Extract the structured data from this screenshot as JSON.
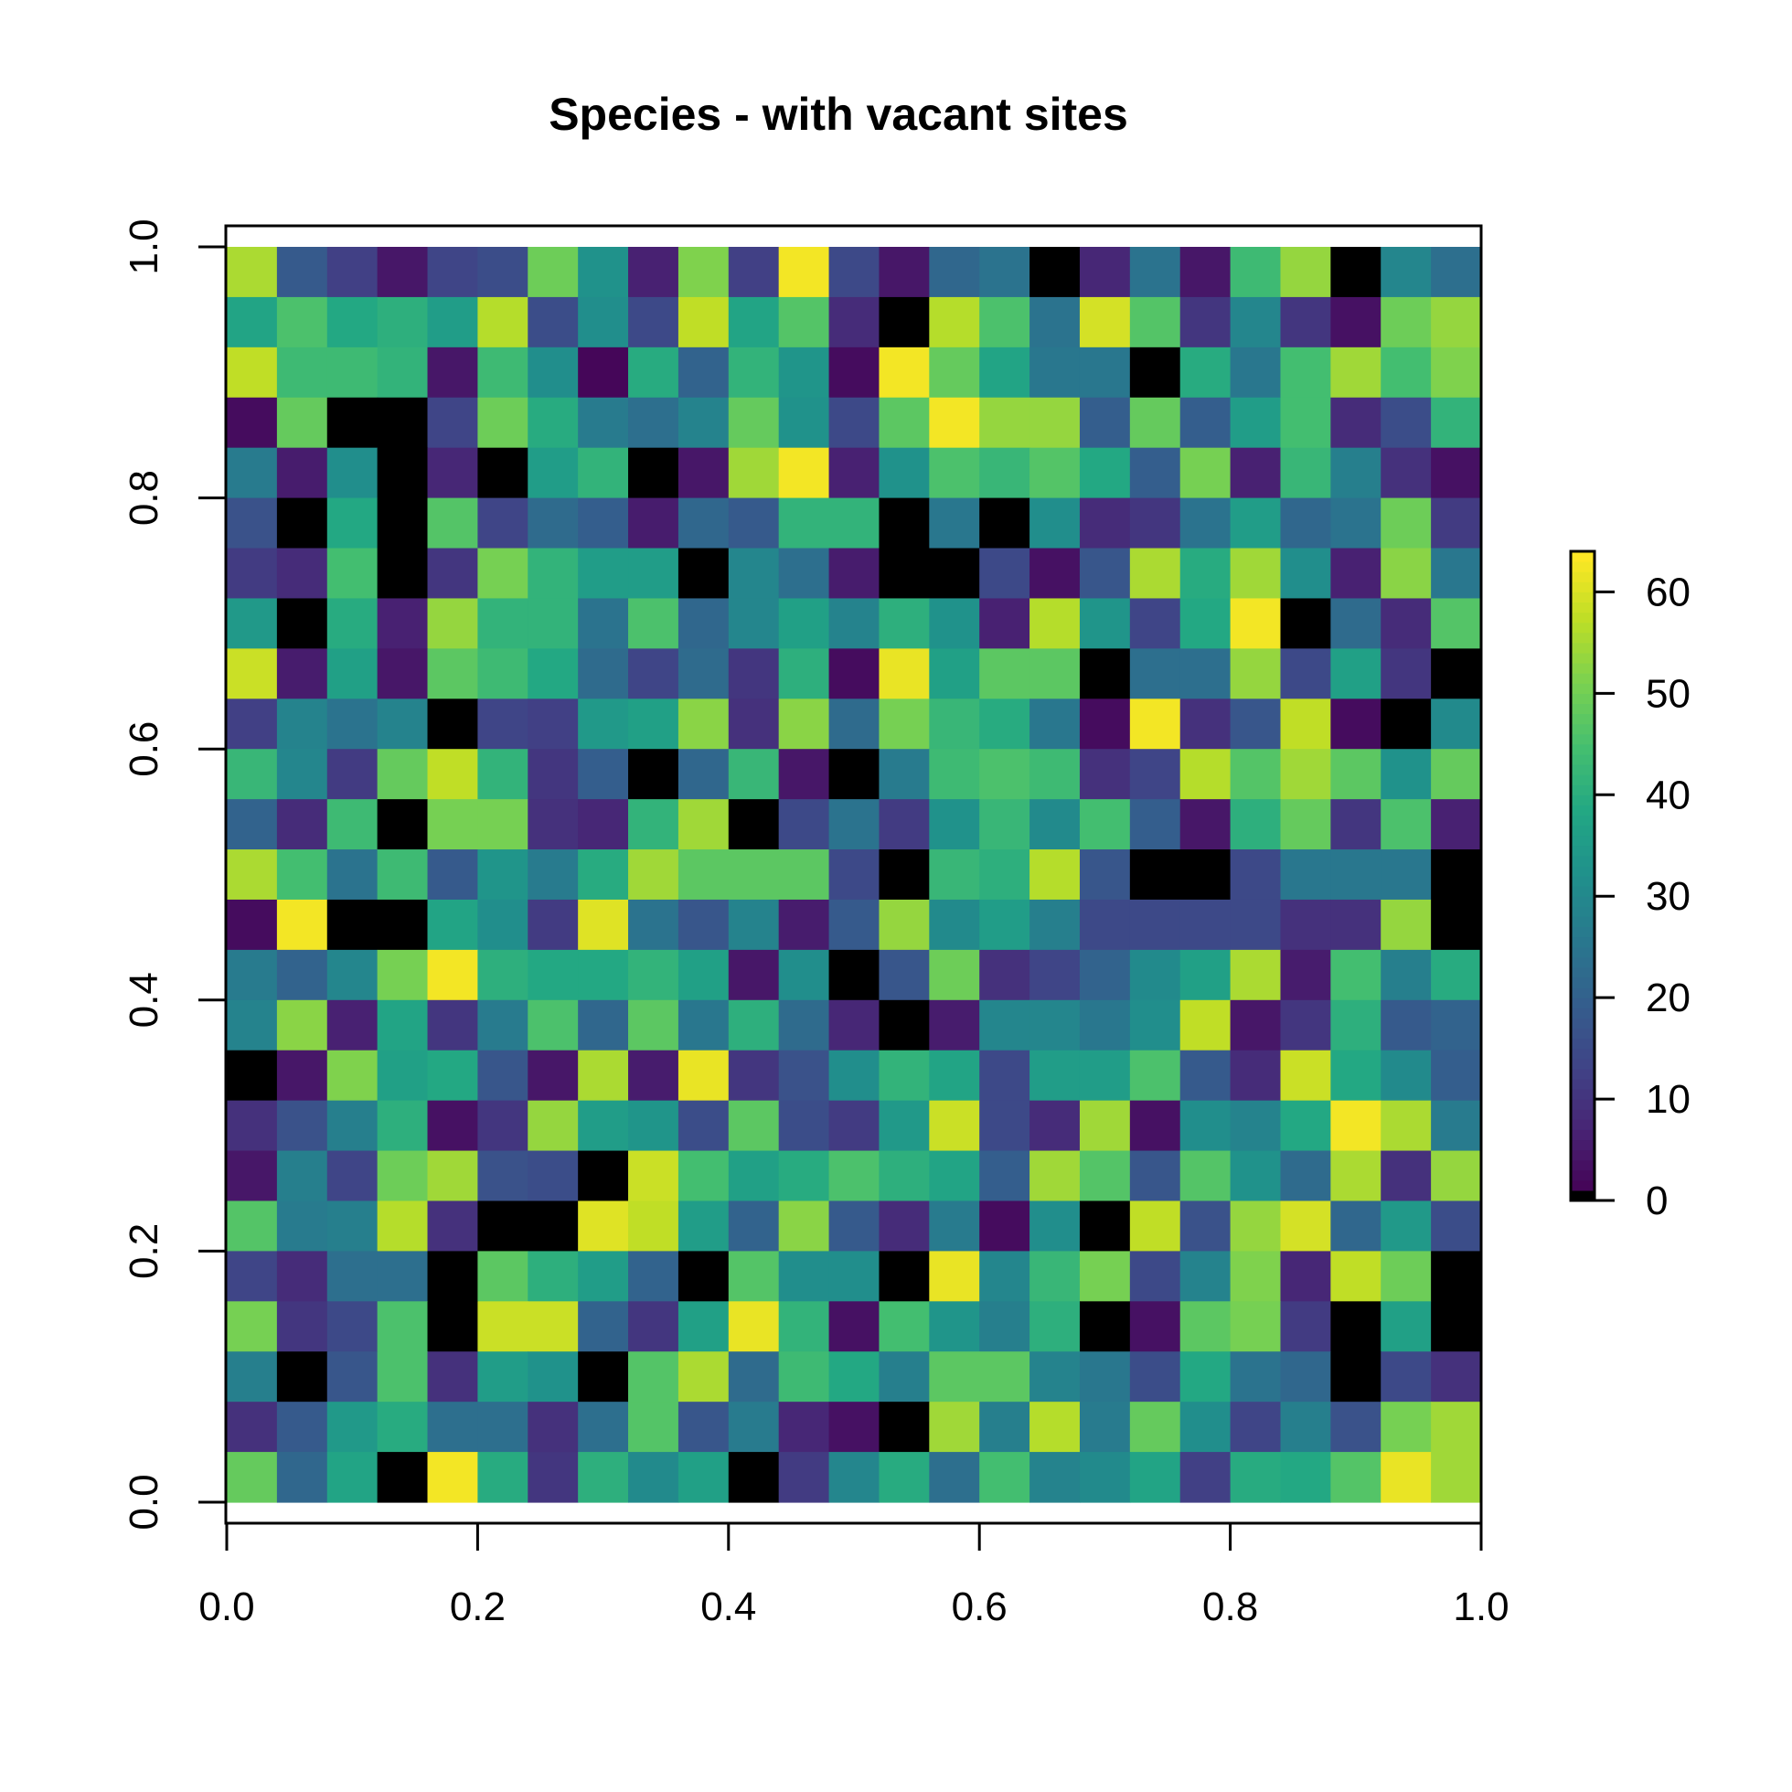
{
  "chart_data": {
    "type": "heatmap",
    "title": "Species - with vacant sites",
    "xlabel": "",
    "ylabel": "",
    "xlim": [
      0,
      1
    ],
    "ylim": [
      0,
      1
    ],
    "x_ticks": [
      "0.0",
      "0.2",
      "0.4",
      "0.6",
      "0.8",
      "1.0"
    ],
    "y_ticks": [
      "0.0",
      "0.2",
      "0.4",
      "0.6",
      "0.8",
      "1.0"
    ],
    "colorbar": {
      "range": [
        0,
        64
      ],
      "ticks": [
        "0",
        "10",
        "20",
        "30",
        "40",
        "50",
        "60"
      ],
      "placement": "right",
      "zero_color": "#000000",
      "colormap": "viridis"
    },
    "grid_size": [
      25,
      25
    ],
    "row_order": "top-to-bottom",
    "values": [
      [
        56,
        19,
        13,
        5,
        14,
        16,
        50,
        33,
        7,
        52,
        13,
        63,
        15,
        5,
        22,
        25,
        0,
        8,
        25,
        5,
        44,
        54,
        0,
        30,
        24
      ],
      [
        38,
        46,
        39,
        41,
        36,
        57,
        16,
        32,
        15,
        58,
        38,
        47,
        9,
        0,
        57,
        46,
        25,
        60,
        47,
        11,
        30,
        11,
        4,
        50,
        54
      ],
      [
        58,
        44,
        44,
        42,
        5,
        44,
        32,
        2,
        40,
        21,
        42,
        34,
        3,
        63,
        49,
        38,
        26,
        26,
        0,
        40,
        26,
        45,
        55,
        45,
        52
      ],
      [
        3,
        49,
        0,
        0,
        14,
        50,
        40,
        27,
        24,
        29,
        49,
        33,
        15,
        48,
        63,
        54,
        54,
        20,
        49,
        20,
        36,
        45,
        9,
        16,
        42
      ],
      [
        27,
        6,
        32,
        0,
        8,
        0,
        36,
        42,
        0,
        5,
        55,
        63,
        7,
        33,
        46,
        43,
        47,
        39,
        20,
        51,
        7,
        43,
        28,
        10,
        4
      ],
      [
        17,
        0,
        39,
        0,
        47,
        14,
        23,
        20,
        6,
        22,
        19,
        42,
        42,
        0,
        26,
        0,
        32,
        9,
        11,
        25,
        36,
        22,
        25,
        50,
        12
      ],
      [
        12,
        9,
        45,
        0,
        11,
        51,
        42,
        36,
        36,
        0,
        30,
        24,
        6,
        0,
        0,
        15,
        4,
        18,
        56,
        40,
        55,
        32,
        7,
        53,
        26
      ],
      [
        35,
        0,
        40,
        7,
        54,
        42,
        42,
        25,
        46,
        22,
        30,
        37,
        29,
        41,
        33,
        7,
        57,
        34,
        14,
        39,
        63,
        0,
        23,
        9,
        47
      ],
      [
        59,
        6,
        37,
        5,
        48,
        44,
        39,
        23,
        14,
        23,
        11,
        41,
        3,
        62,
        37,
        48,
        48,
        0,
        24,
        24,
        54,
        15,
        37,
        11,
        0
      ],
      [
        13,
        29,
        25,
        29,
        0,
        14,
        13,
        35,
        37,
        53,
        10,
        53,
        23,
        51,
        43,
        40,
        26,
        3,
        63,
        10,
        18,
        58,
        3,
        0,
        31
      ],
      [
        43,
        30,
        12,
        49,
        58,
        42,
        11,
        20,
        0,
        22,
        43,
        5,
        0,
        27,
        44,
        46,
        44,
        10,
        14,
        57,
        47,
        55,
        48,
        33,
        49
      ],
      [
        21,
        9,
        44,
        0,
        51,
        51,
        10,
        8,
        42,
        55,
        0,
        15,
        25,
        12,
        33,
        43,
        31,
        45,
        20,
        5,
        41,
        49,
        11,
        46,
        7
      ],
      [
        56,
        45,
        25,
        44,
        19,
        34,
        27,
        40,
        55,
        48,
        48,
        48,
        15,
        0,
        43,
        41,
        57,
        18,
        0,
        0,
        15,
        26,
        26,
        26,
        0
      ],
      [
        3,
        63,
        0,
        0,
        38,
        32,
        12,
        61,
        25,
        18,
        29,
        6,
        19,
        54,
        31,
        36,
        28,
        15,
        15,
        15,
        15,
        10,
        10,
        54,
        0
      ],
      [
        27,
        21,
        30,
        51,
        63,
        41,
        39,
        39,
        42,
        37,
        5,
        32,
        0,
        18,
        50,
        10,
        14,
        21,
        31,
        37,
        56,
        6,
        45,
        28,
        40
      ],
      [
        29,
        53,
        7,
        38,
        11,
        27,
        46,
        22,
        48,
        26,
        41,
        23,
        8,
        0,
        6,
        30,
        30,
        26,
        32,
        58,
        5,
        11,
        41,
        19,
        21
      ],
      [
        0,
        5,
        52,
        37,
        39,
        18,
        5,
        56,
        6,
        62,
        11,
        17,
        32,
        42,
        38,
        15,
        36,
        36,
        46,
        19,
        9,
        59,
        39,
        31,
        20
      ],
      [
        10,
        17,
        28,
        41,
        4,
        11,
        54,
        36,
        34,
        16,
        48,
        16,
        12,
        35,
        59,
        15,
        9,
        55,
        4,
        32,
        29,
        39,
        63,
        56,
        27
      ],
      [
        5,
        28,
        14,
        50,
        55,
        17,
        16,
        0,
        59,
        45,
        37,
        40,
        46,
        41,
        38,
        20,
        55,
        47,
        18,
        47,
        33,
        23,
        56,
        10,
        54
      ],
      [
        47,
        27,
        28,
        57,
        10,
        0,
        0,
        61,
        58,
        36,
        21,
        53,
        19,
        9,
        27,
        3,
        32,
        0,
        58,
        17,
        54,
        60,
        22,
        35,
        16
      ],
      [
        14,
        9,
        24,
        24,
        0,
        48,
        41,
        36,
        21,
        0,
        47,
        32,
        32,
        0,
        62,
        30,
        43,
        51,
        15,
        29,
        52,
        8,
        58,
        50,
        0
      ],
      [
        51,
        11,
        15,
        46,
        0,
        59,
        59,
        21,
        11,
        37,
        62,
        42,
        4,
        45,
        34,
        28,
        41,
        0,
        4,
        48,
        51,
        12,
        0,
        37,
        0
      ],
      [
        28,
        0,
        18,
        46,
        10,
        36,
        33,
        0,
        47,
        56,
        23,
        44,
        39,
        28,
        48,
        48,
        29,
        26,
        16,
        39,
        25,
        22,
        0,
        15,
        10
      ],
      [
        10,
        19,
        35,
        40,
        24,
        24,
        10,
        24,
        47,
        18,
        27,
        8,
        4,
        0,
        55,
        28,
        57,
        27,
        49,
        32,
        14,
        28,
        17,
        51,
        55
      ],
      [
        49,
        22,
        38,
        0,
        63,
        40,
        11,
        41,
        31,
        37,
        0,
        12,
        30,
        40,
        24,
        45,
        29,
        31,
        38,
        13,
        40,
        39,
        47,
        62,
        55
      ]
    ]
  }
}
